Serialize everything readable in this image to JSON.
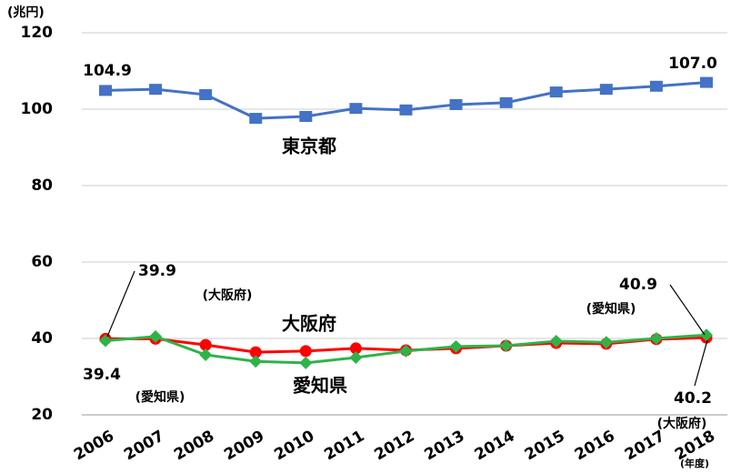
{
  "chart_data": {
    "type": "line",
    "y_unit": "(兆円)",
    "x_unit": "(年度)",
    "categories": [
      "2006",
      "2007",
      "2008",
      "2009",
      "2010",
      "2011",
      "2012",
      "2013",
      "2014",
      "2015",
      "2016",
      "2017",
      "2018"
    ],
    "series": [
      {
        "name": "東京都",
        "color": "#4472c4",
        "marker": "square",
        "values": [
          104.9,
          105.2,
          103.8,
          97.6,
          98.1,
          100.2,
          99.8,
          101.2,
          101.7,
          104.5,
          105.2,
          106.0,
          107.0
        ],
        "value_labels": [
          "104.9",
          null,
          null,
          null,
          null,
          null,
          null,
          null,
          null,
          null,
          null,
          null,
          "107.0"
        ]
      },
      {
        "name": "大阪府",
        "color": "#ff0000",
        "marker": "circle",
        "values": [
          39.9,
          39.9,
          38.3,
          36.4,
          36.7,
          37.4,
          36.9,
          37.4,
          38.1,
          38.8,
          38.6,
          39.8,
          40.2
        ],
        "value_labels": [
          "39.9",
          null,
          null,
          null,
          null,
          null,
          null,
          null,
          null,
          null,
          null,
          null,
          "40.2"
        ],
        "annotations": [
          "(大阪府)",
          "(大阪府)"
        ]
      },
      {
        "name": "愛知県",
        "color": "#2eb34a",
        "marker": "diamond",
        "values": [
          39.4,
          40.5,
          35.7,
          34.0,
          33.6,
          35.0,
          36.7,
          37.9,
          38.1,
          39.3,
          39.0,
          40.0,
          40.9
        ],
        "value_labels": [
          "39.4",
          null,
          null,
          null,
          null,
          null,
          null,
          null,
          null,
          null,
          null,
          null,
          "40.9"
        ],
        "annotations": [
          "(愛知県)",
          "(愛知県)"
        ]
      }
    ],
    "ylim": [
      20,
      120
    ],
    "yticks": [
      20,
      40,
      60,
      80,
      100,
      120
    ],
    "grid": true
  }
}
